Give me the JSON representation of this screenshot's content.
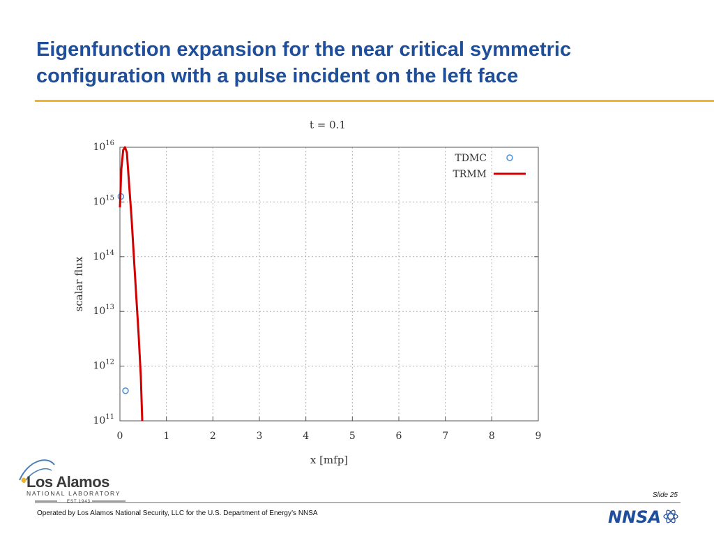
{
  "slide": {
    "title_line1": "Eigenfunction expansion for the near critical symmetric",
    "title_line2": "configuration with a pulse incident on the left face",
    "accent_color": "#f0b323",
    "title_color": "#1f4e9a"
  },
  "chart_data": {
    "type": "line",
    "title": "t = 0.1",
    "xlabel": "x [mfp]",
    "ylabel": "scalar flux",
    "xlim": [
      0,
      9
    ],
    "ylim_exponent": [
      11,
      16
    ],
    "y_scale": "log",
    "x_ticks": [
      "0",
      "1",
      "2",
      "3",
      "4",
      "5",
      "6",
      "7",
      "8",
      "9"
    ],
    "y_ticks": [
      {
        "base": "10",
        "exp": "11"
      },
      {
        "base": "10",
        "exp": "12"
      },
      {
        "base": "10",
        "exp": "13"
      },
      {
        "base": "10",
        "exp": "14"
      },
      {
        "base": "10",
        "exp": "15"
      },
      {
        "base": "10",
        "exp": "16"
      }
    ],
    "grid": true,
    "legend_position": "top-right",
    "series": [
      {
        "name": "TDMC",
        "style": "markers",
        "color": "#4a90d9",
        "points": [
          {
            "x": 0.02,
            "log10_y": 15.1
          },
          {
            "x": 0.12,
            "log10_y": 11.55
          }
        ]
      },
      {
        "name": "TRMM",
        "style": "line",
        "color": "#d00000",
        "points": [
          {
            "x": 0.0,
            "log10_y": 14.9
          },
          {
            "x": 0.03,
            "log10_y": 15.6
          },
          {
            "x": 0.07,
            "log10_y": 15.95
          },
          {
            "x": 0.11,
            "log10_y": 16.0
          },
          {
            "x": 0.15,
            "log10_y": 15.9
          },
          {
            "x": 0.2,
            "log10_y": 15.3
          },
          {
            "x": 0.25,
            "log10_y": 14.7
          },
          {
            "x": 0.3,
            "log10_y": 14.0
          },
          {
            "x": 0.35,
            "log10_y": 13.3
          },
          {
            "x": 0.4,
            "log10_y": 12.6
          },
          {
            "x": 0.45,
            "log10_y": 11.8
          },
          {
            "x": 0.48,
            "log10_y": 11.0
          }
        ]
      }
    ]
  },
  "footer": {
    "lab_name": "Los Alamos",
    "lab_sub": "NATIONAL LABORATORY",
    "lab_est": "EST.1943",
    "slide_number": "Slide 25",
    "operated_by": "Operated by Los Alamos National Security, LLC for the U.S. Department of Energy’s NNSA",
    "nnsa": "NNSA"
  }
}
